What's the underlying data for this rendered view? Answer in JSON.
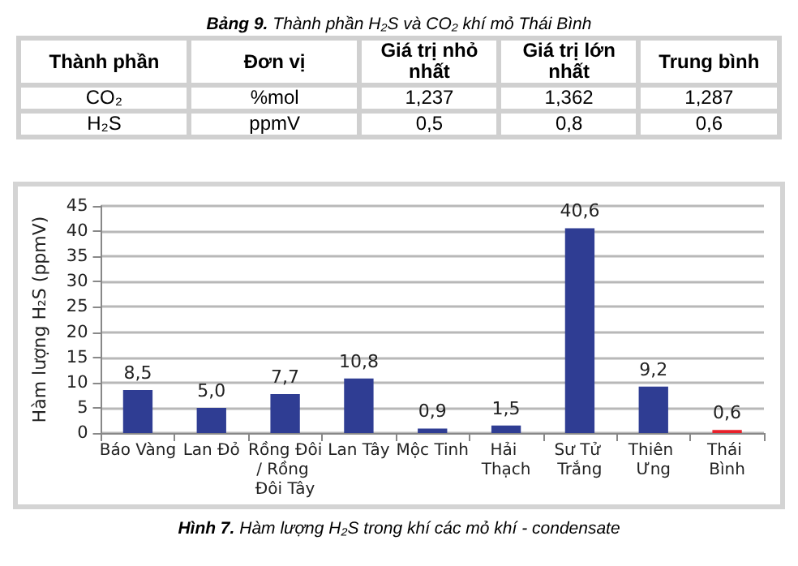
{
  "chart_data": [
    {
      "type": "other",
      "title": "Bảng 9. Thành phần H₂S và CO₂ khí mỏ Thái Bình",
      "categories": [
        "Thành phần",
        "Đơn vị",
        "Giá trị nhỏ nhất",
        "Giá trị lớn nhất",
        "Trung bình"
      ],
      "cell_labels": [
        [
          "CO₂",
          "%mol",
          "1,237",
          "1,362",
          "1,287"
        ],
        [
          "H₂S",
          "ppmV",
          "0,5",
          "0,8",
          "0,6"
        ]
      ]
    },
    {
      "type": "bar",
      "title": "Hình 7. Hàm lượng H₂S trong khí các mỏ khí - condensate",
      "ylabel": "Hàm lượng H₂S (ppmV)",
      "categories": [
        "Báo Vàng",
        "Lan Đỏ",
        "Rồng Đôi/ Rồng Đôi Tây",
        "Lan Tây",
        "Mộc Tinh",
        "Hải Thạch",
        "Sư Tử Trắng",
        "Thiên Ưng",
        "Thái Bình"
      ],
      "values": [
        8.5,
        5.0,
        7.7,
        10.8,
        0.9,
        1.5,
        40.6,
        9.2,
        0.6
      ],
      "colors": [
        "#2f3d93",
        "#2f3d93",
        "#2f3d93",
        "#2f3d93",
        "#2f3d93",
        "#2f3d93",
        "#2f3d93",
        "#2f3d93",
        "#e8202a"
      ],
      "value_labels": [
        "8,5",
        "5,0",
        "7,7",
        "10,8",
        "0,9",
        "1,5",
        "40,6",
        "9,2",
        "0,6"
      ],
      "ylim": [
        0,
        45
      ],
      "yticks": [
        0,
        5,
        10,
        15,
        20,
        25,
        30,
        35,
        40,
        45
      ],
      "grid": "y"
    }
  ]
}
